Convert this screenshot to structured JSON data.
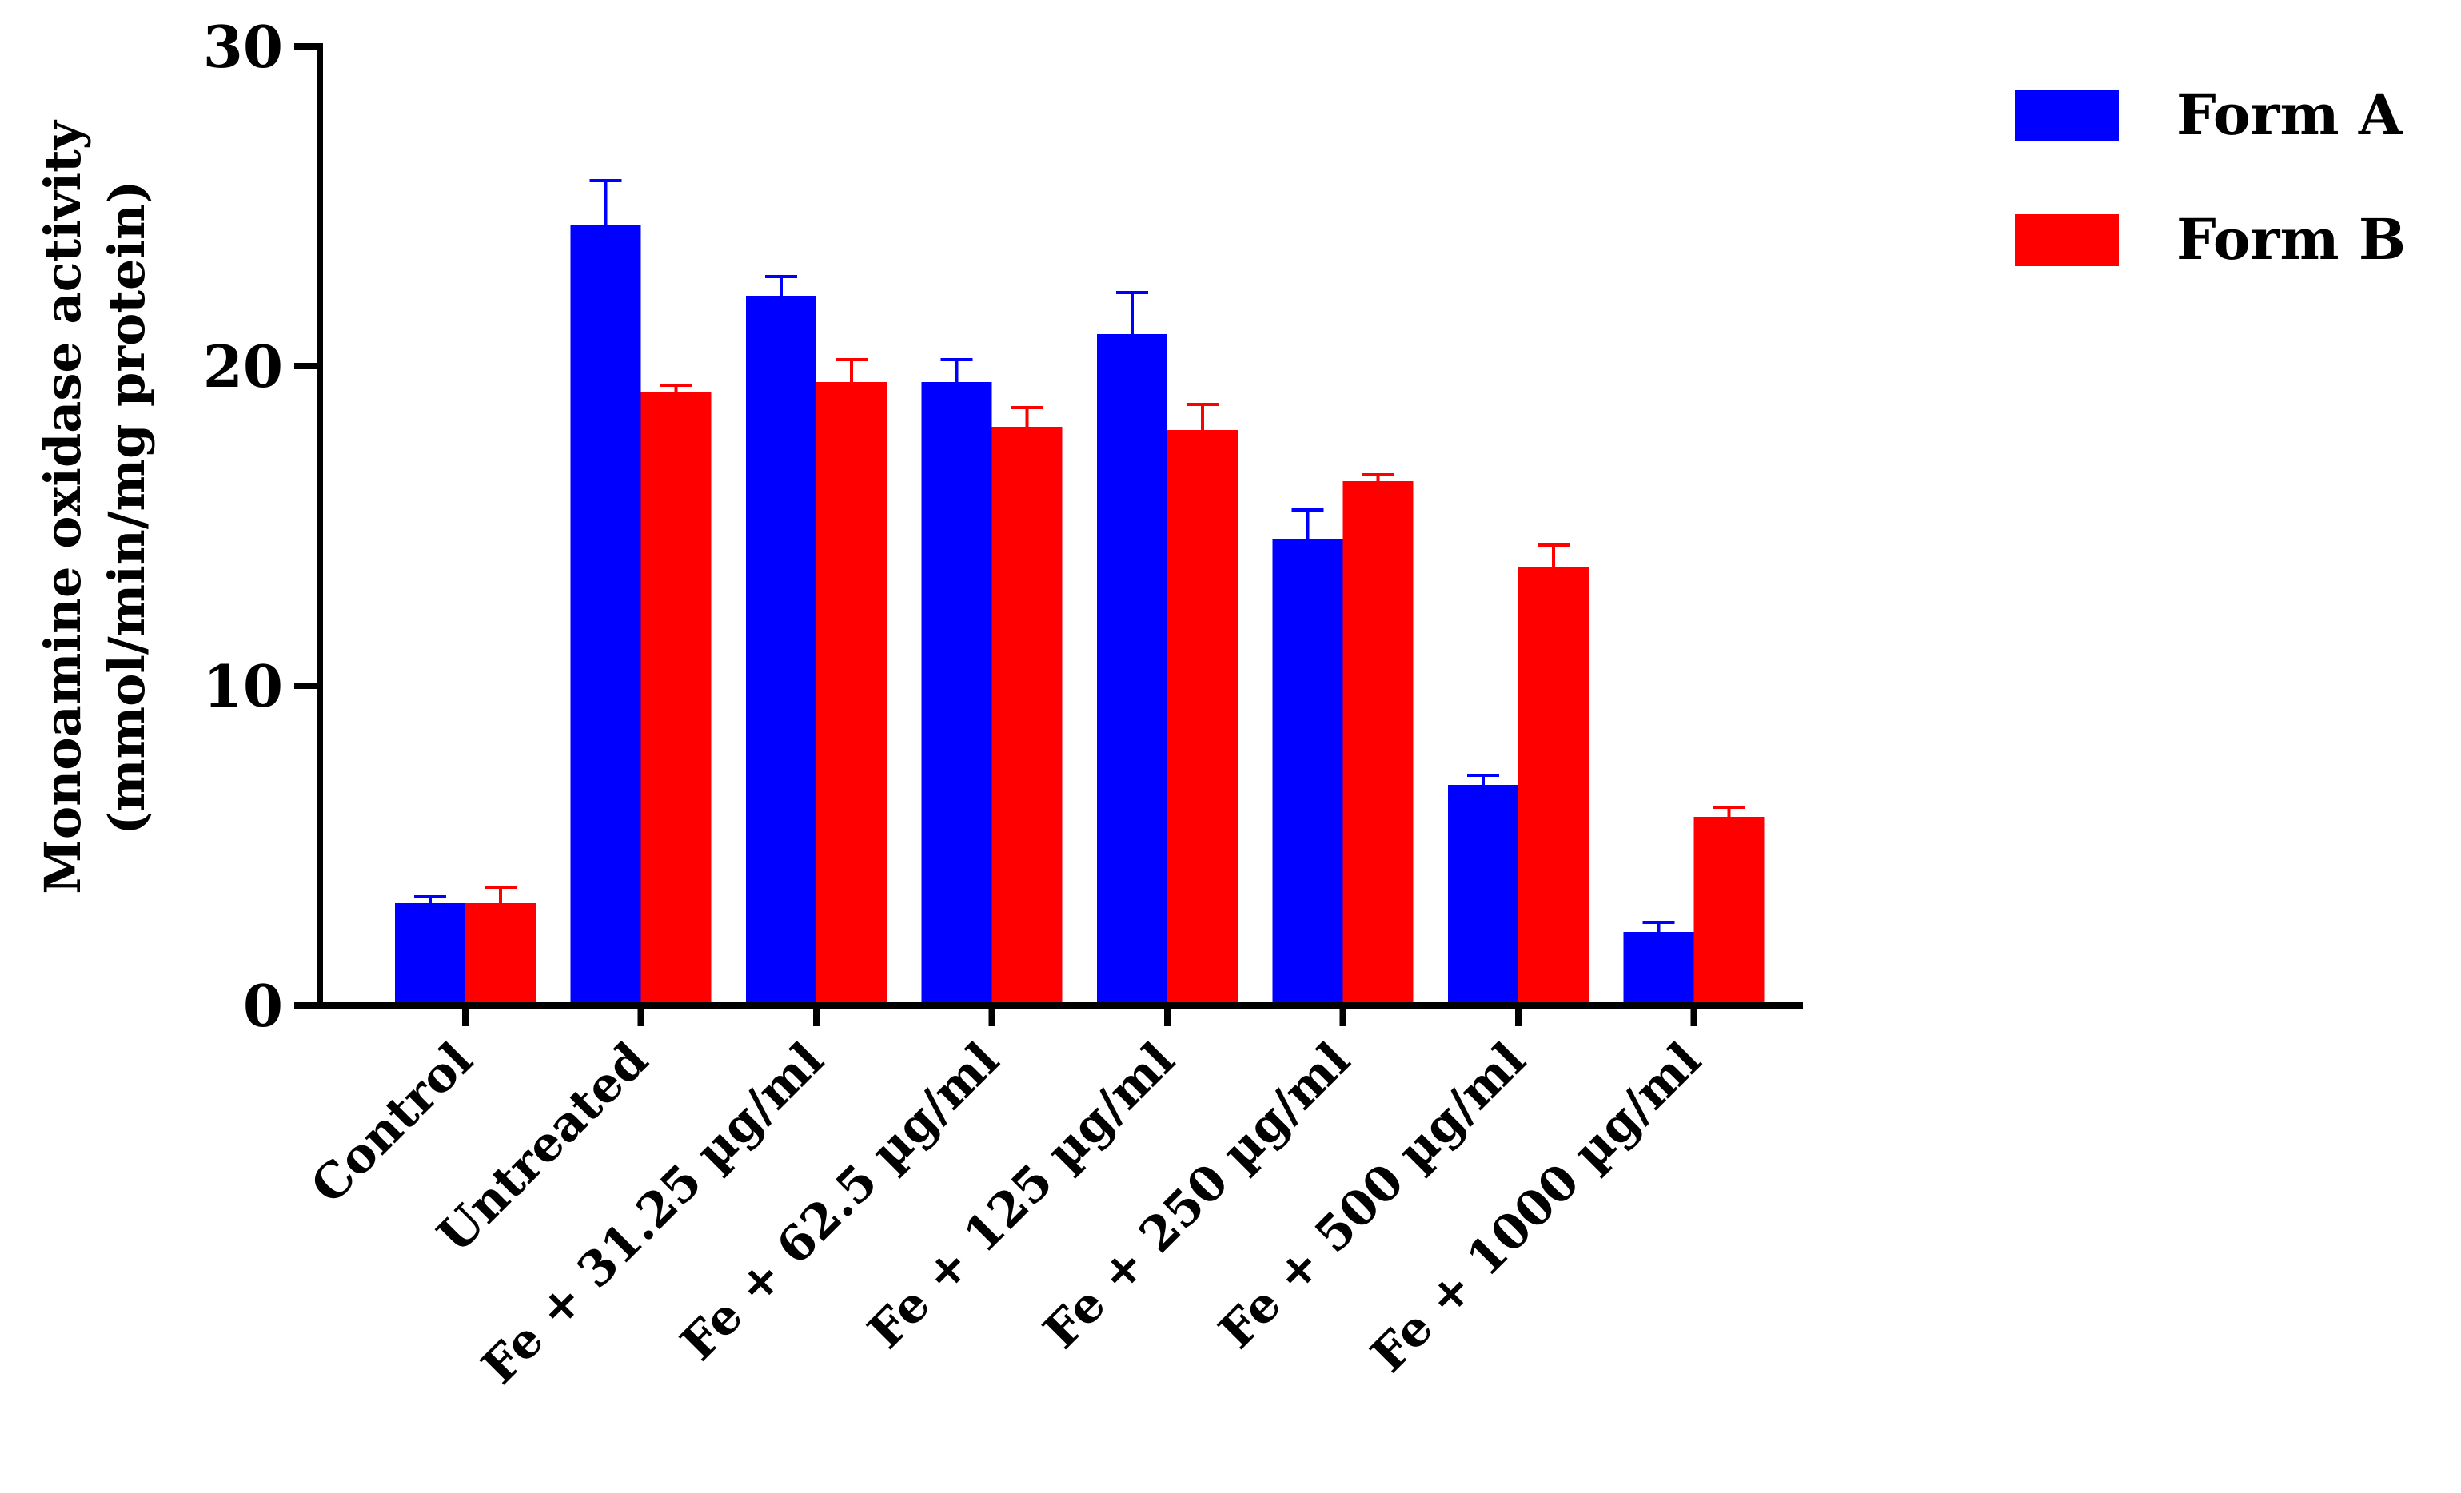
{
  "chart_data": {
    "type": "bar",
    "ylabel_lines": [
      "Monoamine oxidase activity",
      "(mmol/min/mg protein)"
    ],
    "xlabel": "",
    "ylim": [
      0,
      30
    ],
    "yticks": [
      0,
      10,
      20,
      30
    ],
    "categories": [
      "Control",
      "Untreated",
      "Fe + 31.25 µg/ml",
      "Fe + 62.5 µg/ml",
      "Fe + 125 µg/ml",
      "Fe + 250 µg/ml",
      "Fe + 500 µg/ml",
      "Fe + 1000 µg/ml"
    ],
    "series": [
      {
        "name": "Form A",
        "color": "#0000ff",
        "values": [
          3.2,
          24.4,
          22.2,
          19.5,
          21.0,
          14.6,
          6.9,
          2.3
        ],
        "errors": [
          0.2,
          1.4,
          0.6,
          0.7,
          1.3,
          0.9,
          0.3,
          0.3
        ]
      },
      {
        "name": "Form B",
        "color": "#ff0000",
        "values": [
          3.2,
          19.2,
          19.5,
          18.1,
          18.0,
          16.4,
          13.7,
          5.9
        ],
        "errors": [
          0.5,
          0.2,
          0.7,
          0.6,
          0.8,
          0.2,
          0.7,
          0.3
        ]
      }
    ],
    "error_bars": "upper",
    "legend_position": "top-right",
    "grid": false
  }
}
